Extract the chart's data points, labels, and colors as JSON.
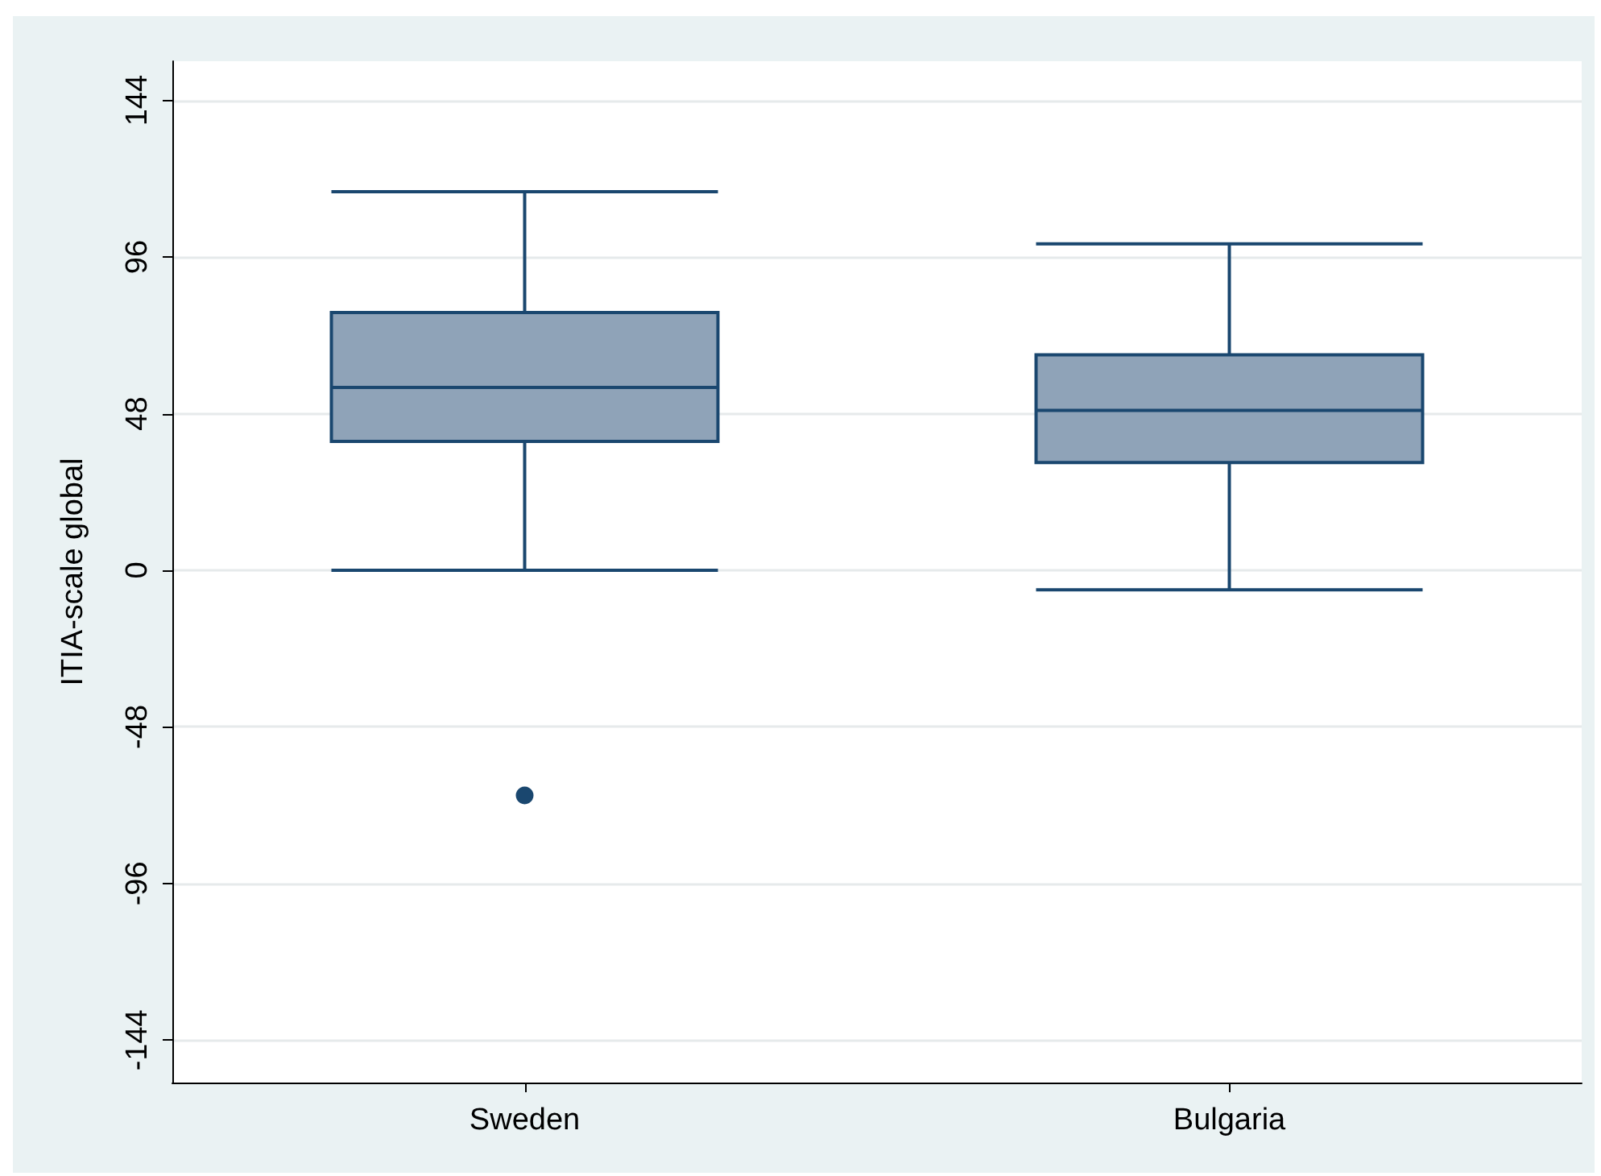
{
  "chart_data": {
    "type": "box",
    "ylabel": "ITIA-scale global",
    "categories": [
      "Sweden",
      "Bulgaria"
    ],
    "boxes": [
      {
        "low": 0,
        "q1": 39.5,
        "median": 56,
        "q3": 79,
        "high": 116,
        "outliers": [
          -69
        ]
      },
      {
        "low": -6,
        "q1": 33,
        "median": 49,
        "q3": 66,
        "high": 100
      }
    ],
    "color": "#8fa3b8",
    "ylim": [
      -157,
      156
    ],
    "yticks": [
      -144,
      -96,
      -48,
      0,
      48,
      96,
      144
    ],
    "grid": "y"
  }
}
